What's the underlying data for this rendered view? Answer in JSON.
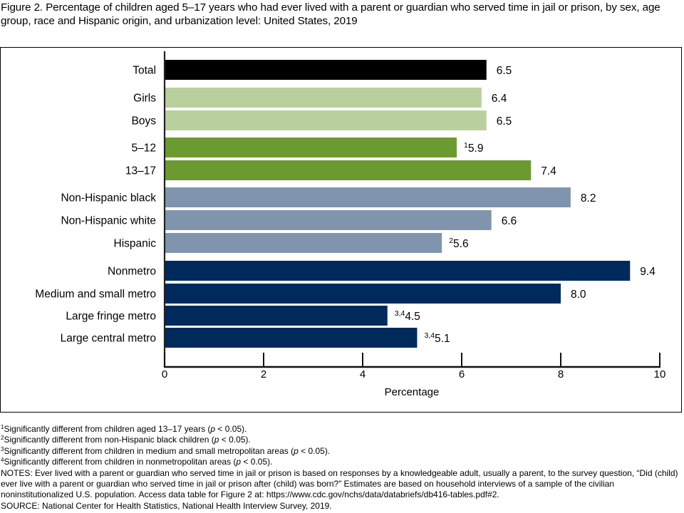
{
  "title": "Figure 2. Percentage of children aged 5–17 years who had ever lived with a parent or guardian who served time in jail or prison, by sex, age group, race and Hispanic origin, and urbanization level: United States, 2019",
  "colors": {
    "total": "#000000",
    "sex": "#b8d09e",
    "age": "#6b9b30",
    "race": "#8095ad",
    "urbanization": "#002a5c"
  },
  "chart_data": {
    "type": "bar",
    "orientation": "horizontal",
    "title": "Figure 2. Percentage of children aged 5–17 years who had ever lived with a parent or guardian who served time in jail or prison, by sex, age group, race and Hispanic origin, and urbanization level: United States, 2019",
    "xlabel": "Percentage",
    "ylabel": "",
    "xlim": [
      0,
      10
    ],
    "xticks": [
      "0",
      "2",
      "4",
      "6",
      "8",
      "10"
    ],
    "grid": false,
    "categories": [
      "Total",
      "Girls",
      "Boys",
      "5–12",
      "13–17",
      "Non-Hispanic black",
      "Non-Hispanic white",
      "Hispanic",
      "Nonmetro",
      "Medium and small metro",
      "Large fringe metro",
      "Large central metro"
    ],
    "groups": [
      "total",
      "sex",
      "sex",
      "age",
      "age",
      "race",
      "race",
      "race",
      "urbanization",
      "urbanization",
      "urbanization",
      "urbanization"
    ],
    "values": [
      6.5,
      6.4,
      6.5,
      5.9,
      7.4,
      8.2,
      6.6,
      5.6,
      9.4,
      8.0,
      4.5,
      5.1
    ],
    "labels": [
      "6.5",
      "6.4",
      "6.5",
      "5.9",
      "7.4",
      "8.2",
      "6.6",
      "5.6",
      "9.4",
      "8.0",
      "4.5",
      "5.1"
    ],
    "label_superscripts": [
      "",
      "",
      "",
      "1",
      "",
      "",
      "",
      "2",
      "",
      "",
      "3,4",
      "3,4"
    ]
  },
  "footnotes": [
    {
      "mark": "1",
      "text": "Significantly different from children aged 13–17 years (",
      "p": "p",
      "tail": " < 0.05)."
    },
    {
      "mark": "2",
      "text": "Significantly different from non-Hispanic black children (",
      "p": "p",
      "tail": " < 0.05)."
    },
    {
      "mark": "3",
      "text": "Significantly different from children in medium and small metropolitan areas (",
      "p": "p",
      "tail": " < 0.05)."
    },
    {
      "mark": "4",
      "text": "Significantly different from children in nonmetropolitan areas (",
      "p": "p",
      "tail": " < 0.05)."
    }
  ],
  "notes": "NOTES: Ever lived with a parent or guardian who served time in jail or prison is based on responses by a knowledgeable adult, usually a parent, to the survey question, “Did (child) ever live with a parent or guardian who served time in jail or prison after (child) was born?” Estimates are based on household interviews of a sample of the civilian noninstitutionalized U.S. population. Access data table for Figure 2 at: https://www.cdc.gov/nchs/data/databriefs/db416-tables.pdf#2.",
  "source": "SOURCE: National Center for Health Statistics, National Health Interview Survey, 2019."
}
